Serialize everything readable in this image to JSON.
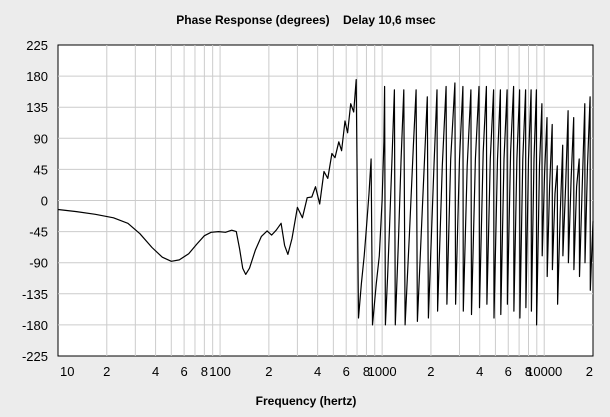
{
  "chart_data": {
    "type": "line",
    "title": "Phase Response (degrees)    Delay 10,6 msec",
    "xlabel": "Frequency (hertz)",
    "ylabel": "",
    "xscale": "log",
    "xlim": [
      10,
      20000
    ],
    "ylim": [
      -225,
      225
    ],
    "grid": true,
    "legend": "none",
    "y_ticks": [
      "225",
      "180",
      "135",
      "90",
      "45",
      "0",
      "-45",
      "-90",
      "-135",
      "-180",
      "-225"
    ],
    "x_ticks": [
      {
        "value": 10,
        "label": "10"
      },
      {
        "value": 20,
        "label": "2"
      },
      {
        "value": 40,
        "label": "4"
      },
      {
        "value": 60,
        "label": "6"
      },
      {
        "value": 80,
        "label": "8"
      },
      {
        "value": 100,
        "label": "100"
      },
      {
        "value": 200,
        "label": "2"
      },
      {
        "value": 400,
        "label": "4"
      },
      {
        "value": 600,
        "label": "6"
      },
      {
        "value": 800,
        "label": "8"
      },
      {
        "value": 1000,
        "label": "1000"
      },
      {
        "value": 2000,
        "label": "2"
      },
      {
        "value": 4000,
        "label": "4"
      },
      {
        "value": 6000,
        "label": "6"
      },
      {
        "value": 8000,
        "label": "8"
      },
      {
        "value": 10000,
        "label": "10000"
      },
      {
        "value": 20000,
        "label": "2"
      }
    ],
    "series": [
      {
        "line_color": "#000000",
        "points": [
          [
            10,
            -13
          ],
          [
            13,
            -16
          ],
          [
            17,
            -20
          ],
          [
            22,
            -25
          ],
          [
            27,
            -33
          ],
          [
            32,
            -48
          ],
          [
            38,
            -68
          ],
          [
            44,
            -82
          ],
          [
            50,
            -88
          ],
          [
            56,
            -86
          ],
          [
            64,
            -77
          ],
          [
            72,
            -63
          ],
          [
            80,
            -51
          ],
          [
            88,
            -46
          ],
          [
            98,
            -45
          ],
          [
            108,
            -46
          ],
          [
            118,
            -43
          ],
          [
            126,
            -45
          ],
          [
            132,
            -70
          ],
          [
            138,
            -98
          ],
          [
            144,
            -107
          ],
          [
            152,
            -98
          ],
          [
            165,
            -72
          ],
          [
            180,
            -52
          ],
          [
            195,
            -44
          ],
          [
            208,
            -50
          ],
          [
            222,
            -43
          ],
          [
            238,
            -33
          ],
          [
            250,
            -65
          ],
          [
            262,
            -78
          ],
          [
            278,
            -55
          ],
          [
            300,
            -10
          ],
          [
            322,
            -25
          ],
          [
            345,
            4
          ],
          [
            368,
            5
          ],
          [
            388,
            20
          ],
          [
            412,
            -5
          ],
          [
            438,
            42
          ],
          [
            462,
            32
          ],
          [
            490,
            68
          ],
          [
            512,
            62
          ],
          [
            540,
            85
          ],
          [
            562,
            72
          ],
          [
            590,
            115
          ],
          [
            612,
            98
          ],
          [
            640,
            140
          ],
          [
            668,
            128
          ],
          [
            692,
            175
          ],
          [
            715,
            -170
          ],
          [
            745,
            -120
          ],
          [
            775,
            -80
          ],
          [
            800,
            -40
          ],
          [
            830,
            10
          ],
          [
            855,
            60
          ],
          [
            872,
            -180
          ],
          [
            920,
            -120
          ],
          [
            960,
            -80
          ],
          [
            1000,
            0
          ],
          [
            1025,
            85
          ],
          [
            1035,
            165
          ],
          [
            1047,
            -180
          ],
          [
            1080,
            -110
          ],
          [
            1110,
            -40
          ],
          [
            1150,
            60
          ],
          [
            1190,
            160
          ],
          [
            1205,
            -180
          ],
          [
            1260,
            -60
          ],
          [
            1310,
            60
          ],
          [
            1360,
            160
          ],
          [
            1385,
            -180
          ],
          [
            1480,
            -40
          ],
          [
            1560,
            80
          ],
          [
            1620,
            160
          ],
          [
            1650,
            -175
          ],
          [
            1780,
            0
          ],
          [
            1900,
            150
          ],
          [
            1930,
            -170
          ],
          [
            2080,
            40
          ],
          [
            2180,
            160
          ],
          [
            2200,
            -160
          ],
          [
            2350,
            50
          ],
          [
            2480,
            165
          ],
          [
            2510,
            -150
          ],
          [
            2650,
            60
          ],
          [
            2810,
            170
          ],
          [
            2840,
            -150
          ],
          [
            3000,
            60
          ],
          [
            3150,
            165
          ],
          [
            3170,
            -160
          ],
          [
            3350,
            50
          ],
          [
            3530,
            160
          ],
          [
            3560,
            -165
          ],
          [
            3760,
            60
          ],
          [
            3960,
            165
          ],
          [
            3990,
            -155
          ],
          [
            4200,
            70
          ],
          [
            4400,
            165
          ],
          [
            4430,
            -150
          ],
          [
            4650,
            60
          ],
          [
            4870,
            160
          ],
          [
            4900,
            -170
          ],
          [
            5150,
            60
          ],
          [
            5370,
            160
          ],
          [
            5400,
            -165
          ],
          [
            5650,
            60
          ],
          [
            5900,
            160
          ],
          [
            5930,
            -150
          ],
          [
            6200,
            70
          ],
          [
            6470,
            165
          ],
          [
            6500,
            -160
          ],
          [
            6780,
            60
          ],
          [
            7050,
            160
          ],
          [
            7080,
            -170
          ],
          [
            7380,
            60
          ],
          [
            7680,
            160
          ],
          [
            7710,
            -155
          ],
          [
            8000,
            60
          ],
          [
            8300,
            160
          ],
          [
            8330,
            -160
          ],
          [
            8650,
            60
          ],
          [
            8950,
            160
          ],
          [
            8980,
            -180
          ],
          [
            9350,
            50
          ],
          [
            9680,
            140
          ],
          [
            9720,
            -80
          ],
          [
            10050,
            40
          ],
          [
            10400,
            120
          ],
          [
            10440,
            -110
          ],
          [
            10800,
            20
          ],
          [
            11200,
            110
          ],
          [
            11240,
            -100
          ],
          [
            11650,
            10
          ],
          [
            12050,
            50
          ],
          [
            12100,
            -150
          ],
          [
            12550,
            -20
          ],
          [
            13000,
            80
          ],
          [
            13050,
            -80
          ],
          [
            13550,
            20
          ],
          [
            14050,
            130
          ],
          [
            14100,
            -90
          ],
          [
            14650,
            30
          ],
          [
            15200,
            120
          ],
          [
            15250,
            -100
          ],
          [
            15850,
            20
          ],
          [
            16450,
            60
          ],
          [
            16500,
            -110
          ],
          [
            17100,
            10
          ],
          [
            17800,
            140
          ],
          [
            17850,
            -90
          ],
          [
            18500,
            50
          ],
          [
            19200,
            150
          ],
          [
            19250,
            -130
          ],
          [
            20000,
            -30
          ]
        ]
      }
    ]
  }
}
